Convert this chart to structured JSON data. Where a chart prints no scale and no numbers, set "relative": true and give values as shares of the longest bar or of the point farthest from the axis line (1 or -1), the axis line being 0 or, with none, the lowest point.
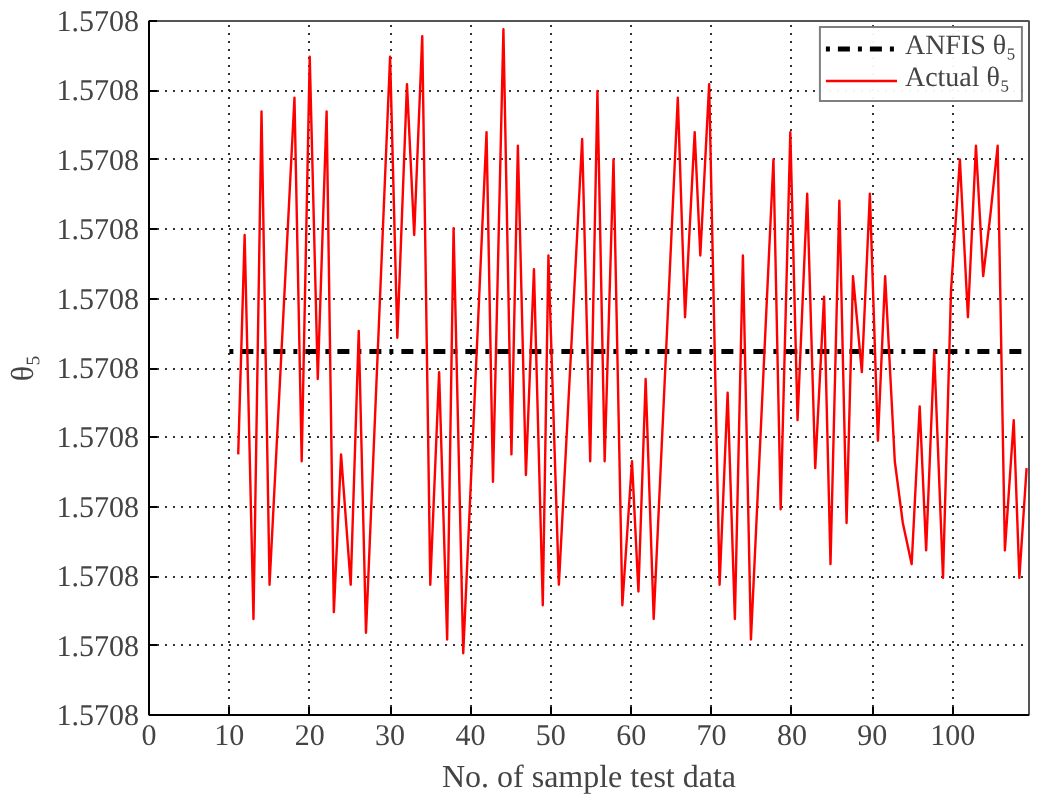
{
  "chart_data": {
    "type": "line",
    "relative": true,
    "xlabel": "No. of sample test data",
    "ylabel": "θ₅",
    "xlim": [
      0,
      109.5
    ],
    "xticks": [
      0,
      10,
      20,
      30,
      40,
      50,
      60,
      70,
      80,
      90,
      100
    ],
    "annotations": [
      "1.5708",
      "1.5708",
      "1.5708",
      "1.5708",
      "1.5708",
      "1.5708",
      "1.5708",
      "1.5708",
      "1.5708",
      "1.5708",
      "1.5708"
    ],
    "grid": true,
    "legend": "top right",
    "marker": "none",
    "series": [
      {
        "name": "ANFIS θ₅",
        "color": "#000000",
        "line_style": "dotted",
        "x": [
          10,
          109.5
        ],
        "values": [
          0.53,
          0.53
        ]
      },
      {
        "name": "Actual θ₅",
        "color": "#ff0000",
        "line_style": "solid",
        "x": [
          11.1,
          11.9,
          13.0,
          14.0,
          15.0,
          18.1,
          19.0,
          20.0,
          21.0,
          22.1,
          23.0,
          23.9,
          25.1,
          26.1,
          27.0,
          30.0,
          30.9,
          32.1,
          33.0,
          34.0,
          35.0,
          36.1,
          37.1,
          37.9,
          39.1,
          42.0,
          42.8,
          44.1,
          45.1,
          45.9,
          46.9,
          47.9,
          49.0,
          49.7,
          51.0,
          53.9,
          54.9,
          55.8,
          56.7,
          57.8,
          58.9,
          60.1,
          60.9,
          61.8,
          62.8,
          65.8,
          66.7,
          67.9,
          68.6,
          69.7,
          71.0,
          72.0,
          72.9,
          73.9,
          74.9,
          77.7,
          78.6,
          79.8,
          80.7,
          81.9,
          82.9,
          84.0,
          84.8,
          85.9,
          86.8,
          87.6,
          88.7,
          89.7,
          90.7,
          91.6,
          92.8,
          93.8,
          94.9,
          95.9,
          96.7,
          97.7,
          98.8,
          99.8,
          100.9,
          101.9,
          102.9,
          103.8,
          104.7,
          105.6,
          106.5,
          107.6,
          108.3,
          109.2
        ],
        "values": [
          0.38,
          0.7,
          0.14,
          0.88,
          0.19,
          0.9,
          0.37,
          0.96,
          0.49,
          0.88,
          0.15,
          0.38,
          0.19,
          0.56,
          0.12,
          0.96,
          0.55,
          0.92,
          0.7,
          0.99,
          0.19,
          0.5,
          0.11,
          0.71,
          0.09,
          0.85,
          0.34,
          1,
          0.38,
          0.83,
          0.35,
          0.65,
          0.16,
          0.67,
          0.19,
          0.84,
          0.37,
          0.91,
          0.37,
          0.81,
          0.16,
          0.37,
          0.18,
          0.49,
          0.14,
          0.9,
          0.58,
          0.85,
          0.67,
          0.92,
          0.19,
          0.47,
          0.14,
          0.67,
          0.11,
          0.81,
          0.3,
          0.85,
          0.43,
          0.76,
          0.36,
          0.61,
          0.22,
          0.75,
          0.28,
          0.64,
          0.5,
          0.76,
          0.4,
          0.64,
          0.37,
          0.28,
          0.22,
          0.45,
          0.24,
          0.53,
          0.2,
          0.62,
          0.81,
          0.58,
          0.83,
          0.64,
          0.73,
          0.83,
          0.24,
          0.43,
          0.2,
          0.36
        ]
      }
    ]
  }
}
